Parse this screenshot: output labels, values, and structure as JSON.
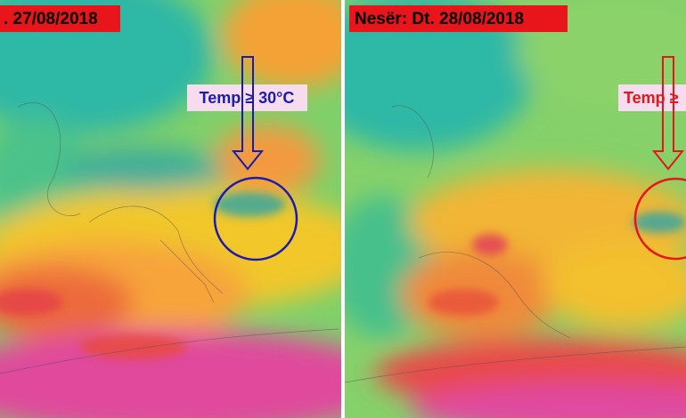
{
  "left_panel": {
    "label": ". 27/08/2018",
    "annotation": "Temp ≥ 30°C"
  },
  "right_panel": {
    "label": "Nesër: Dt. 28/08/2018",
    "annotation": "Temp ≥"
  }
}
